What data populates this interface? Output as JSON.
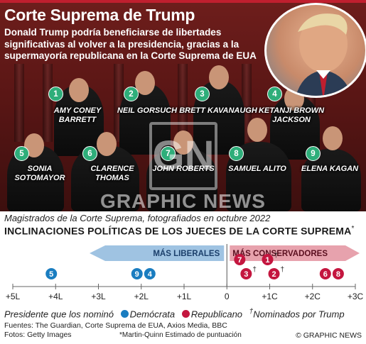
{
  "header": {
    "title": "Corte Suprema de Trump",
    "subtitle": "Donald Trump podría beneficiarse de libertades significativas al volver a la presidencia, gracias a la supermayoría republicana en la Corte Suprema de EUA"
  },
  "justices": [
    {
      "num": "1",
      "name": "AMY CONEY BARRETT"
    },
    {
      "num": "2",
      "name": "NEIL GORSUCH"
    },
    {
      "num": "3",
      "name": "BRETT KAVANAUGH"
    },
    {
      "num": "4",
      "name": "KETANJI BROWN JACKSON"
    },
    {
      "num": "5",
      "name": "SONIA SOTOMAYOR"
    },
    {
      "num": "6",
      "name": "CLARENCE THOMAS"
    },
    {
      "num": "7",
      "name": "JOHN ROBERTS"
    },
    {
      "num": "8",
      "name": "SAMUEL ALITO"
    },
    {
      "num": "9",
      "name": "ELENA KAGAN"
    }
  ],
  "watermark": {
    "text": "GRAPHIC NEWS",
    "logo": "GN"
  },
  "caption": "Magistrados de la Corte Suprema, fotografiados en octubre 2022",
  "chart_data": {
    "type": "scatter",
    "title": "INCLINACIONES POLÍTICAS DE LOS JUECES DE LA CORTE SUPREMA",
    "title_marker": "*",
    "x_ticks": [
      "+5L",
      "+4L",
      "+3L",
      "+2L",
      "+1L",
      "0",
      "+1C",
      "+2C",
      "+3C"
    ],
    "xlim": [
      -5,
      3
    ],
    "arrows": {
      "left": "MÁS LIBERALES",
      "right": "MÁS CONSERVADORES"
    },
    "series": [
      {
        "name": "Demócrata",
        "color": "#1a7dc0",
        "points": [
          {
            "label": "5",
            "x": -4.1
          },
          {
            "label": "9",
            "x": -2.1
          },
          {
            "label": "4",
            "x": -1.8
          }
        ]
      },
      {
        "name": "Republicano",
        "color": "#c4163f",
        "points": [
          {
            "label": "3",
            "x": 0.45,
            "trump": true
          },
          {
            "label": "7",
            "x": 0.3
          },
          {
            "label": "2",
            "x": 1.1,
            "trump": true
          },
          {
            "label": "1",
            "x": 0.95,
            "trump": true
          },
          {
            "label": "8",
            "x": 2.6
          },
          {
            "label": "6",
            "x": 2.3
          }
        ]
      }
    ]
  },
  "legend": {
    "label": "Presidente que los nominó",
    "democrat": "Demócrata",
    "republican": "Republicano",
    "dagger": "†",
    "trump": "Nominados por Trump",
    "democrat_color": "#1a7dc0",
    "republican_color": "#c4163f"
  },
  "sources": "Fuentes: The Guardian, Corte Suprema de EUA, Axios Media, BBC",
  "photos": "Fotos: Getty Images",
  "footnote": "*Martin-Quinn Estimado de puntuación",
  "credit": "© GRAPHIC NEWS"
}
